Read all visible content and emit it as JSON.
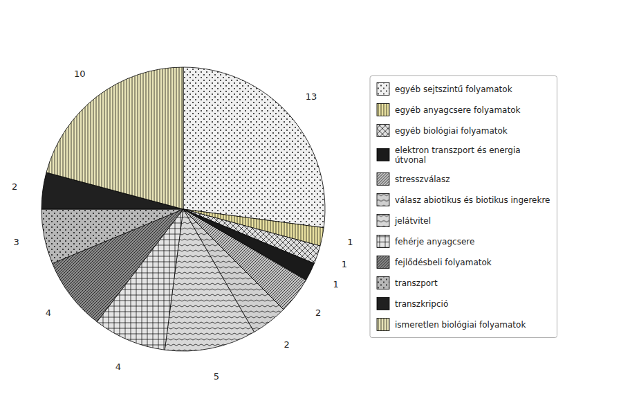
{
  "chart_data": {
    "type": "pie",
    "categories": [
      "egyéb sejtszintű folyamatok",
      "egyéb anyagcsere folyamatok",
      "egyéb biológiai folyamatok",
      "elektron transzport és energia\nútvonal",
      "stresszválasz",
      "válasz abiotikus és biotikus ingerekre",
      "jelátvitel",
      "fehérje anyagcsere",
      "fejlődésbeli folyamatok",
      "transzport",
      "transzkripció",
      "ismeretlen biológiai folyamatok"
    ],
    "values": [
      13,
      1,
      1,
      1,
      2,
      2,
      5,
      4,
      4,
      3,
      2,
      10
    ],
    "colors": [
      "#f0f0f0",
      "#e8e0a0",
      "#e0e0e0",
      "#1a1a1a",
      "#c0c0c0",
      "#d0d0d0",
      "#d8d8d8",
      "#e4e4e4",
      "#888888",
      "#b8b8b8",
      "#202020",
      "#e8e4b8"
    ],
    "data_labels": true,
    "legend": "right"
  }
}
